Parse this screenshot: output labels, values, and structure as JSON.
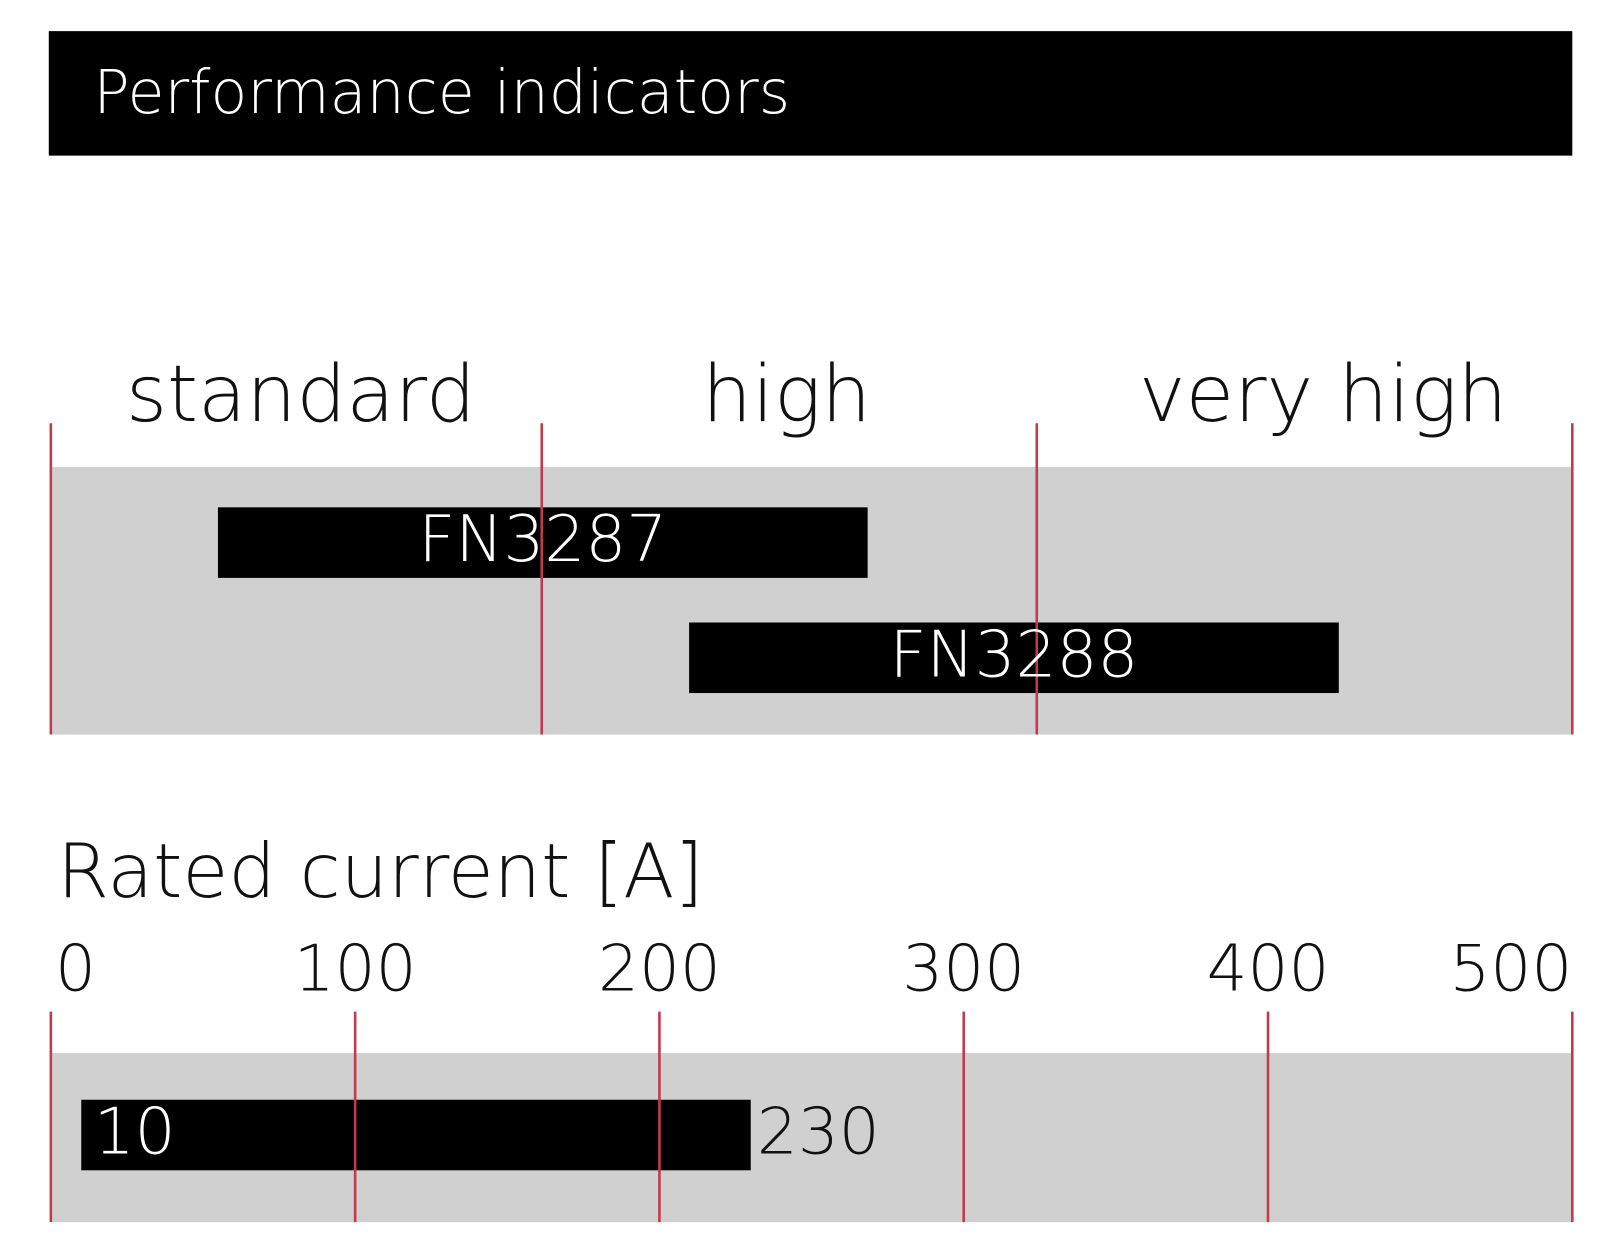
{
  "header": {
    "title": "Performance indicators"
  },
  "performance": {
    "categories": [
      "standard",
      "high",
      "very high"
    ],
    "bars": [
      "FN3287",
      "FN3288"
    ]
  },
  "chart_data": {
    "type": "range-bar",
    "title": "Rated current [A]",
    "xlim": [
      0,
      500
    ],
    "xticks": [
      0,
      100,
      200,
      300,
      400,
      500
    ],
    "bars": [
      {
        "low": 10,
        "high": 230
      }
    ]
  }
}
